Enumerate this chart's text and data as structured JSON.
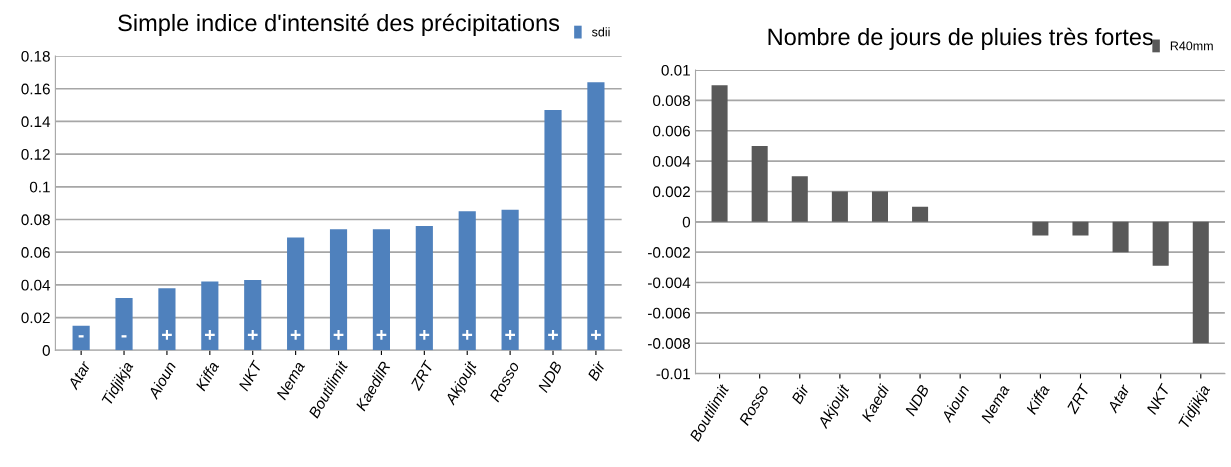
{
  "chart_data": [
    {
      "type": "bar",
      "title": "Simple indice d'intensité des précipitations",
      "categories": [
        "Atar",
        "Tidjikja",
        "Aioun",
        "Kiffa",
        "NKT",
        "Nema",
        "Boutilimit",
        "KaedilR",
        "ZRT",
        "Akjoujt",
        "Rosso",
        "NDB",
        "Bir"
      ],
      "series": [
        {
          "name": "sdii",
          "color": "#4f81bd",
          "values": [
            0.015,
            0.032,
            0.038,
            0.042,
            0.043,
            0.069,
            0.074,
            0.074,
            0.076,
            0.085,
            0.086,
            0.147,
            0.164
          ]
        }
      ],
      "ylim": [
        0,
        0.18
      ],
      "yticks": [
        0,
        0.02,
        0.04,
        0.06,
        0.08,
        0.1,
        0.12,
        0.14,
        0.16,
        0.18
      ],
      "grid": "y",
      "legend": "top right",
      "annotations": [
        "-",
        "-",
        "+",
        "+",
        "+",
        "+",
        "+",
        "+",
        "+",
        "+",
        "+",
        "+",
        "+"
      ]
    },
    {
      "type": "bar",
      "title": "Nombre de jours de pluies très fortes",
      "categories": [
        "Boutilimit",
        "Rosso",
        "Bir",
        "Akjoujt",
        "Kaedi",
        "NDB",
        "Aioun",
        "Nema",
        "Kiffa",
        "ZRT",
        "Atar",
        "NKT",
        "Tidjikja"
      ],
      "series": [
        {
          "name": "R40mm",
          "color": "#595959",
          "values": [
            0.009,
            0.005,
            0.003,
            0.002,
            0.002,
            0.001,
            0,
            0,
            -0.0009,
            -0.0009,
            -0.002,
            -0.0029,
            -0.008
          ]
        }
      ],
      "ylim": [
        -0.01,
        0.01
      ],
      "yticks": [
        -0.01,
        -0.008,
        -0.006,
        -0.004,
        -0.002,
        0,
        0.002,
        0.004,
        0.006,
        0.008,
        0.01
      ],
      "grid": "y",
      "legend": "top right"
    }
  ]
}
